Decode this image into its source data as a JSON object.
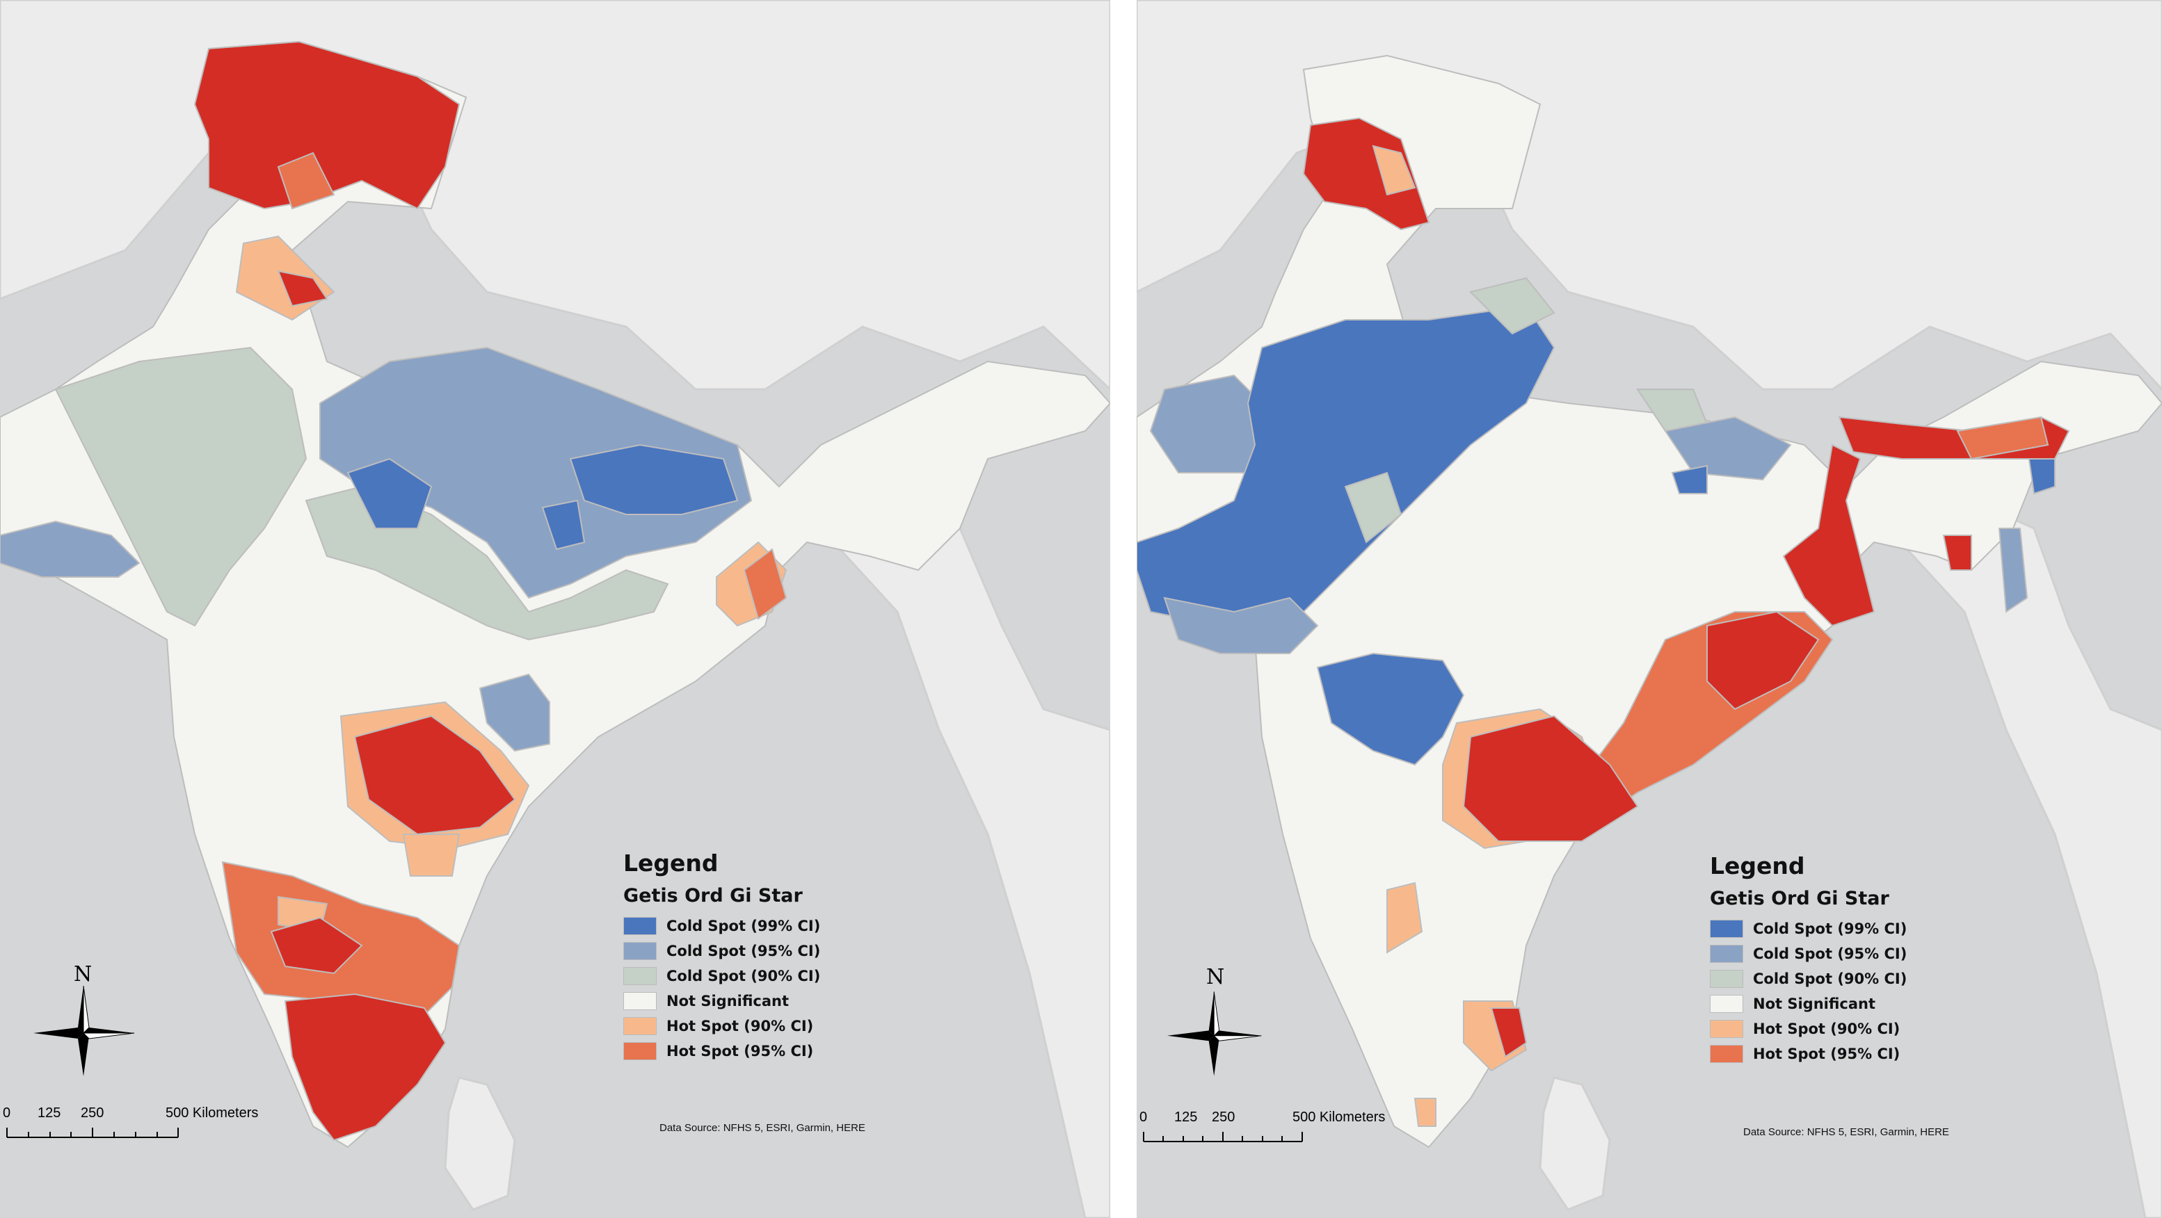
{
  "colors": {
    "water": "#d4d6d7",
    "land_other": "#ececec",
    "border": "#bdbdbd",
    "cold99": "#4a76be",
    "cold95": "#8aa2c4",
    "cold90": "#c5d0c6",
    "not_significant": "#f4f4f1",
    "hot90": "#f7b98c",
    "hot95": "#e8734f",
    "hot99": "#d42d25"
  },
  "maps": [
    {
      "legend": {
        "title": "Legend",
        "subtitle": "Getis Ord Gi Star",
        "items": [
          {
            "label": "Cold Spot (99% CI)",
            "color": "#4a76be"
          },
          {
            "label": "Cold Spot (95% CI)",
            "color": "#8aa2c4"
          },
          {
            "label": "Cold Spot (90% CI)",
            "color": "#c5d0c6"
          },
          {
            "label": "Not Significant",
            "color": "#f4f4f1"
          },
          {
            "label": "Hot Spot (90% CI)",
            "color": "#f7b98c"
          },
          {
            "label": "Hot Spot (95% CI)",
            "color": "#e8734f"
          }
        ]
      },
      "north_label": "N",
      "scale": {
        "ticks": [
          "0",
          "125",
          "250",
          "500 Kilometers"
        ]
      },
      "source": "Data Source: NFHS 5, ESRI, Garmin, HERE"
    },
    {
      "legend": {
        "title": "Legend",
        "subtitle": "Getis Ord Gi Star",
        "items": [
          {
            "label": "Cold Spot (99% CI)",
            "color": "#4a76be"
          },
          {
            "label": "Cold Spot (95% CI)",
            "color": "#8aa2c4"
          },
          {
            "label": "Cold Spot (90% CI)",
            "color": "#c5d0c6"
          },
          {
            "label": "Not Significant",
            "color": "#f4f4f1"
          },
          {
            "label": "Hot Spot (90% CI)",
            "color": "#f7b98c"
          },
          {
            "label": "Hot Spot (95% CI)",
            "color": "#e8734f"
          }
        ]
      },
      "north_label": "N",
      "scale": {
        "ticks": [
          "0",
          "125",
          "250",
          "500 Kilometers"
        ]
      },
      "source": "Data Source: NFHS 5, ESRI, Garmin, HERE"
    }
  ]
}
